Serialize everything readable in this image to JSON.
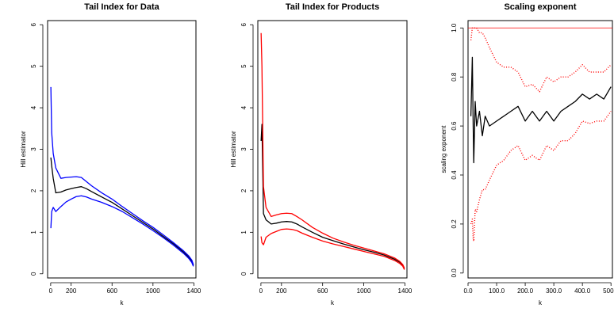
{
  "chart_data": [
    {
      "type": "line",
      "title": "Tail Index for Data",
      "xlabel": "k",
      "ylabel": "Hill estimator",
      "xlim": [
        -30,
        1420
      ],
      "ylim": [
        -0.1,
        6.1
      ],
      "xticks": [
        0,
        200,
        600,
        1000,
        1400
      ],
      "yticks": [
        0,
        1,
        2,
        3,
        4,
        5,
        6
      ],
      "grid": false,
      "band_color": "#0000ff",
      "center_color": "#000000",
      "x": [
        2,
        10,
        25,
        50,
        100,
        150,
        200,
        250,
        300,
        350,
        400,
        500,
        600,
        700,
        800,
        900,
        1000,
        1100,
        1200,
        1300,
        1350,
        1380,
        1395
      ],
      "series": [
        {
          "role": "estimate",
          "values": [
            2.8,
            2.6,
            2.3,
            1.95,
            1.97,
            2.02,
            2.05,
            2.08,
            2.1,
            2.05,
            1.98,
            1.85,
            1.72,
            1.56,
            1.4,
            1.24,
            1.08,
            0.9,
            0.72,
            0.52,
            0.4,
            0.3,
            0.2
          ]
        },
        {
          "role": "upper",
          "values": [
            4.5,
            3.4,
            2.9,
            2.55,
            2.3,
            2.32,
            2.33,
            2.34,
            2.32,
            2.22,
            2.12,
            1.95,
            1.8,
            1.62,
            1.45,
            1.28,
            1.12,
            0.94,
            0.75,
            0.55,
            0.43,
            0.33,
            0.22
          ]
        },
        {
          "role": "lower",
          "values": [
            1.1,
            1.5,
            1.6,
            1.5,
            1.62,
            1.73,
            1.8,
            1.86,
            1.88,
            1.85,
            1.8,
            1.72,
            1.62,
            1.5,
            1.35,
            1.2,
            1.04,
            0.87,
            0.69,
            0.49,
            0.37,
            0.27,
            0.18
          ]
        }
      ]
    },
    {
      "type": "line",
      "title": "Tail Index for Products",
      "xlabel": "k",
      "ylabel": "Hill estimator",
      "xlim": [
        -30,
        1420
      ],
      "ylim": [
        -0.1,
        6.1
      ],
      "xticks": [
        0,
        200,
        600,
        1000,
        1400
      ],
      "yticks": [
        0,
        1,
        2,
        3,
        4,
        5,
        6
      ],
      "grid": false,
      "band_color": "#ff0000",
      "center_color": "#000000",
      "x": [
        2,
        10,
        25,
        50,
        100,
        150,
        200,
        250,
        300,
        350,
        400,
        500,
        600,
        700,
        800,
        900,
        1000,
        1100,
        1200,
        1300,
        1350,
        1380,
        1395
      ],
      "series": [
        {
          "role": "estimate",
          "values": [
            3.2,
            3.6,
            1.45,
            1.3,
            1.2,
            1.22,
            1.25,
            1.26,
            1.25,
            1.2,
            1.13,
            1.0,
            0.88,
            0.8,
            0.72,
            0.65,
            0.58,
            0.52,
            0.45,
            0.35,
            0.28,
            0.2,
            0.12
          ]
        },
        {
          "role": "upper",
          "values": [
            5.8,
            5.0,
            2.1,
            1.6,
            1.38,
            1.42,
            1.45,
            1.46,
            1.45,
            1.38,
            1.3,
            1.12,
            0.98,
            0.86,
            0.77,
            0.69,
            0.62,
            0.55,
            0.48,
            0.38,
            0.3,
            0.22,
            0.14
          ]
        },
        {
          "role": "lower",
          "values": [
            0.9,
            0.75,
            0.7,
            0.88,
            0.97,
            1.02,
            1.07,
            1.08,
            1.07,
            1.04,
            0.98,
            0.88,
            0.79,
            0.72,
            0.66,
            0.6,
            0.54,
            0.48,
            0.42,
            0.32,
            0.25,
            0.18,
            0.1
          ]
        }
      ]
    },
    {
      "type": "line",
      "title": "Scaling exponent",
      "xlabel": "k",
      "ylabel": "scaling exponent",
      "xlim": [
        0,
        505
      ],
      "ylim": [
        -0.02,
        1.03
      ],
      "xticks": [
        0,
        100,
        200,
        300,
        400,
        500
      ],
      "yticks": [
        0.0,
        0.2,
        0.4,
        0.6,
        0.8,
        1.0
      ],
      "grid": false,
      "band_color": "#ff0000",
      "center_color": "#000000",
      "reference_line": 1.0,
      "x": [
        10,
        15,
        18,
        20,
        25,
        30,
        40,
        50,
        60,
        75,
        100,
        125,
        150,
        175,
        200,
        225,
        250,
        275,
        300,
        325,
        350,
        375,
        400,
        425,
        450,
        475,
        500
      ],
      "series": [
        {
          "role": "estimate",
          "values": [
            0.64,
            0.88,
            0.6,
            0.45,
            0.7,
            0.6,
            0.66,
            0.56,
            0.64,
            0.6,
            0.62,
            0.64,
            0.66,
            0.68,
            0.62,
            0.66,
            0.62,
            0.66,
            0.62,
            0.66,
            0.68,
            0.7,
            0.73,
            0.71,
            0.73,
            0.71,
            0.76
          ]
        },
        {
          "role": "upper",
          "values": [
            0.95,
            1.0,
            1.0,
            1.0,
            1.0,
            1.0,
            0.98,
            0.98,
            0.96,
            0.92,
            0.86,
            0.84,
            0.84,
            0.82,
            0.76,
            0.77,
            0.74,
            0.8,
            0.78,
            0.8,
            0.8,
            0.82,
            0.85,
            0.82,
            0.82,
            0.82,
            0.85
          ]
        },
        {
          "role": "lower",
          "values": [
            0.2,
            0.22,
            0.14,
            0.13,
            0.26,
            0.25,
            0.3,
            0.34,
            0.34,
            0.38,
            0.44,
            0.46,
            0.5,
            0.52,
            0.46,
            0.48,
            0.46,
            0.52,
            0.5,
            0.54,
            0.54,
            0.57,
            0.62,
            0.61,
            0.62,
            0.62,
            0.66
          ]
        }
      ]
    }
  ]
}
